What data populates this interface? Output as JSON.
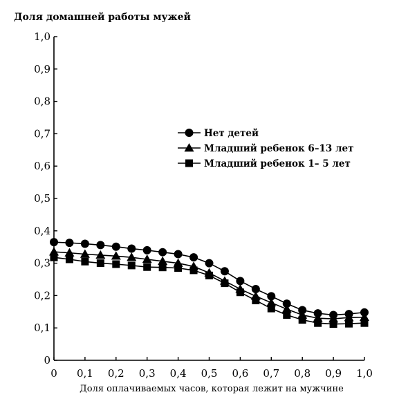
{
  "chart_data": {
    "type": "line",
    "title": "Доля домашней работы мужей",
    "xlabel": "Доля оплачиваемых часов, которая лежит на мужчине",
    "ylabel": "",
    "xlim": [
      0,
      1.0
    ],
    "ylim": [
      0,
      1.0
    ],
    "grid": false,
    "legend_position": "center-right",
    "xticks": [
      "0",
      "0,1",
      "0,2",
      "0,3",
      "0,4",
      "0,5",
      "0,6",
      "0,7",
      "0,8",
      "0,9",
      "1,0"
    ],
    "yticks": [
      "0",
      "0,1",
      "0,2",
      "0,3",
      "0,4",
      "0,5",
      "0,6",
      "0,7",
      "0,8",
      "0,9",
      "1,0"
    ],
    "x": [
      0,
      0.05,
      0.1,
      0.15,
      0.2,
      0.25,
      0.3,
      0.35,
      0.4,
      0.45,
      0.5,
      0.55,
      0.6,
      0.65,
      0.7,
      0.75,
      0.8,
      0.85,
      0.9,
      0.95,
      1.0
    ],
    "series": [
      {
        "name": "Нет детей",
        "marker": "circle",
        "values": [
          0.365,
          0.363,
          0.36,
          0.356,
          0.351,
          0.345,
          0.34,
          0.334,
          0.328,
          0.318,
          0.3,
          0.275,
          0.245,
          0.22,
          0.198,
          0.175,
          0.155,
          0.145,
          0.14,
          0.143,
          0.148
        ]
      },
      {
        "name": "Младший ребенок 6–13 лет",
        "marker": "triangle",
        "values": [
          0.335,
          0.332,
          0.328,
          0.325,
          0.322,
          0.318,
          0.312,
          0.306,
          0.3,
          0.29,
          0.27,
          0.245,
          0.22,
          0.198,
          0.178,
          0.158,
          0.14,
          0.13,
          0.128,
          0.132,
          0.133
        ]
      },
      {
        "name": "Младший ребенок 1– 5 лет",
        "marker": "square",
        "values": [
          0.318,
          0.312,
          0.305,
          0.3,
          0.297,
          0.293,
          0.288,
          0.287,
          0.285,
          0.278,
          0.262,
          0.238,
          0.21,
          0.185,
          0.16,
          0.14,
          0.125,
          0.115,
          0.112,
          0.113,
          0.115
        ]
      }
    ]
  }
}
